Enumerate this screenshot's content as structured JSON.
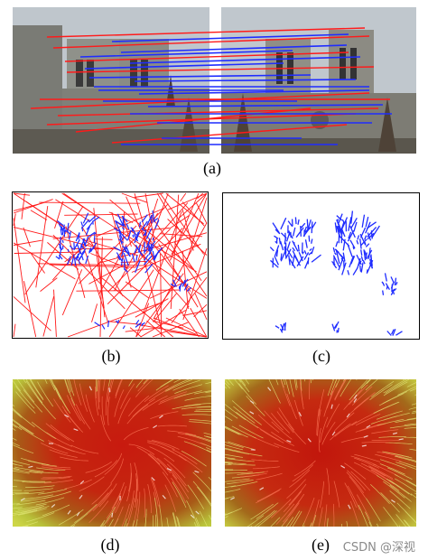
{
  "figure": {
    "captions": {
      "a": "(a)",
      "b": "(b)",
      "c": "(c)",
      "d": "(d)",
      "e": "(e)"
    },
    "watermark": "CSDN @深视"
  },
  "colors": {
    "match_red": "#ff1a1a",
    "match_blue": "#1f2cff",
    "sky": "#b9c0c6",
    "stone": "#8e8f87",
    "flow_red": "#d01e10",
    "flow_yellow": "#c8d23c"
  }
}
